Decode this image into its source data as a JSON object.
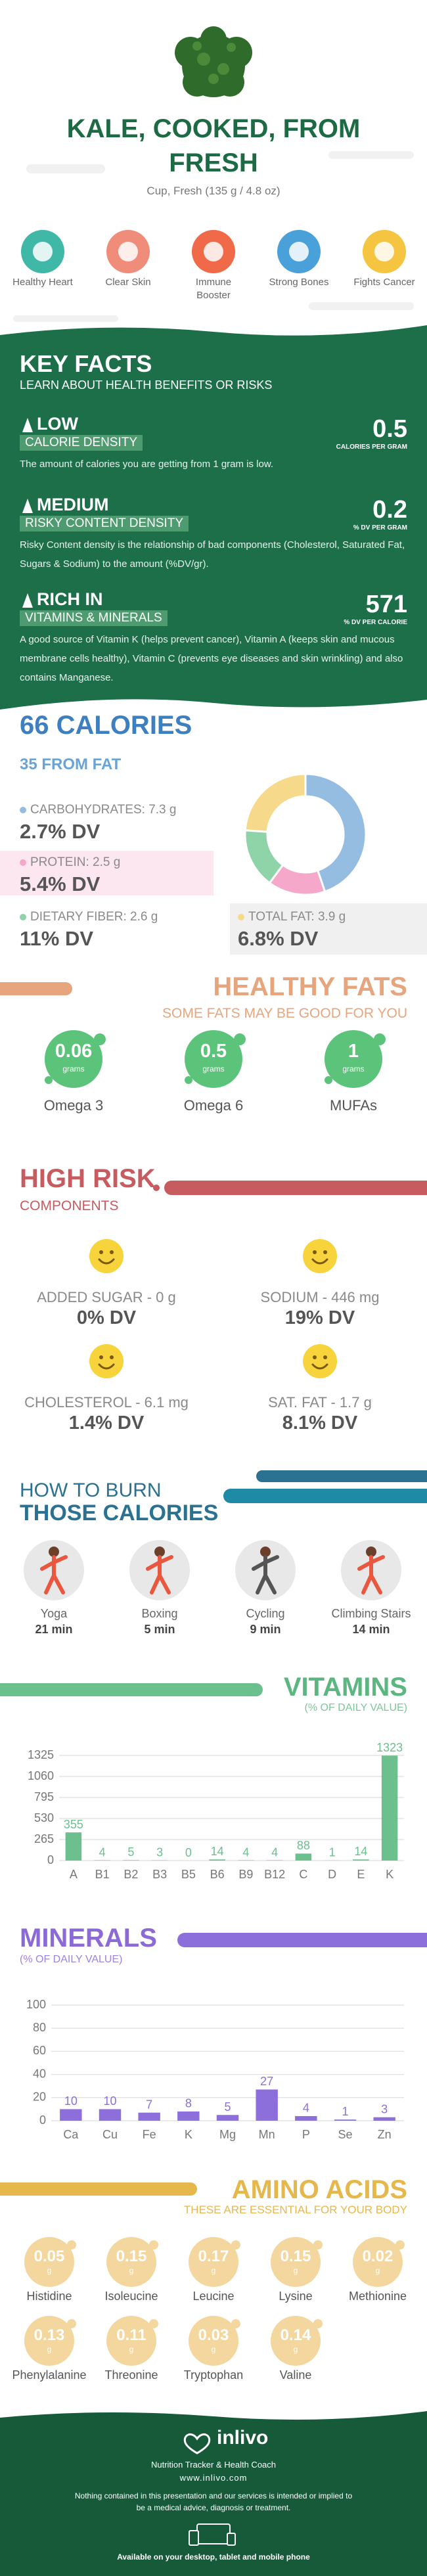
{
  "header": {
    "title": "KALE, COOKED, FROM FRESH",
    "serving": "Cup, Fresh (135 g / 4.8 oz)"
  },
  "benefits": [
    "Healthy Heart",
    "Clear Skin",
    "Immune Booster",
    "Strong Bones",
    "Fights Cancer"
  ],
  "key_facts": {
    "title": "KEY FACTS",
    "subtitle": "LEARN ABOUT HEALTH BENEFITS OR RISKS",
    "items": [
      {
        "level": "LOW",
        "label": "CALORIE DENSITY",
        "text": "The amount of calories you are getting from 1 gram is low.",
        "value": 0.5,
        "unit": "CALORIES PER GRAM"
      },
      {
        "level": "MEDIUM",
        "label": "RISKY CONTENT DENSITY",
        "text": "Risky Content density is the relationship of bad components (Cholesterol, Saturated Fat, Sugars & Sodium) to the amount (%DV/gr).",
        "value": 0.2,
        "unit": "% DV PER GRAM"
      },
      {
        "level": "RICH IN",
        "label": "VITAMINS & MINERALS",
        "text": "A good source of Vitamin K (helps prevent cancer), Vitamin A (keeps skin and mucous membrane cells healthy), Vitamin C (prevents eye diseases and skin wrinkling) and also contains Manganese.",
        "value": 571,
        "unit": "% DV PER CALORIE"
      }
    ]
  },
  "calories": {
    "title": "66 CALORIES",
    "subtitle": "35 FROM FAT",
    "nutrients": [
      {
        "name": "CARBOHYDRATES:",
        "amount": 7.3,
        "unit": "g",
        "dv": "2.7% DV",
        "color": "#95bde2"
      },
      {
        "name": "PROTEIN:",
        "amount": 2.5,
        "unit": "g",
        "dv": "5.4% DV",
        "color": "#f5a8c9"
      },
      {
        "name": "DIETARY FIBER:",
        "amount": 2.6,
        "unit": "g",
        "dv": "11% DV",
        "color": "#8fd3a8"
      },
      {
        "name": "TOTAL FAT:",
        "amount": 3.9,
        "unit": "g",
        "dv": "6.8% DV",
        "color": "#f6d98b"
      }
    ]
  },
  "healthy_fats": {
    "title": "HEALTHY FATS",
    "subtitle": "SOME FATS MAY BE GOOD FOR YOU",
    "items": [
      {
        "amount": 0.06,
        "unit": "grams",
        "name": "Omega 3"
      },
      {
        "amount": 0.5,
        "unit": "grams",
        "name": "Omega 6"
      },
      {
        "amount": 1,
        "unit": "grams",
        "name": "MUFAs"
      }
    ]
  },
  "high_risk": {
    "title": "HIGH RISK",
    "subtitle": "COMPONENTS",
    "items": [
      {
        "name": "ADDED SUGAR - 0 g",
        "dv": "0% DV"
      },
      {
        "name": "SODIUM - 446 mg",
        "dv": "19% DV"
      },
      {
        "name": "CHOLESTEROL - 6.1 mg",
        "dv": "1.4% DV"
      },
      {
        "name": "SAT. FAT - 1.7 g",
        "dv": "8.1% DV"
      }
    ]
  },
  "burn": {
    "title_1": "HOW TO BURN",
    "title_2": "THOSE CALORIES",
    "activities": [
      {
        "name": "Yoga",
        "time": "21 min"
      },
      {
        "name": "Boxing",
        "time": "5 min"
      },
      {
        "name": "Cycling",
        "time": "9 min"
      },
      {
        "name": "Climbing Stairs",
        "time": "14 min"
      }
    ]
  },
  "vitamins": {
    "title": "VITAMINS",
    "subtitle": "(% OF DAILY VALUE)",
    "chart_data": {
      "type": "bar",
      "categories": [
        "A",
        "B1",
        "B2",
        "B3",
        "B5",
        "B6",
        "B9",
        "B12",
        "C",
        "D",
        "E",
        "K"
      ],
      "values": [
        355,
        4,
        5,
        3,
        0,
        14,
        4,
        4,
        88,
        1,
        14,
        1323
      ],
      "color": "#6cc08e",
      "ylim": [
        0,
        1325
      ],
      "yticks": [
        0,
        265,
        530,
        795,
        1060,
        1325
      ],
      "grid": true
    }
  },
  "minerals": {
    "title": "MINERALS",
    "subtitle": "(% OF DAILY VALUE)",
    "chart_data": {
      "type": "bar",
      "categories": [
        "Ca",
        "Cu",
        "Fe",
        "K",
        "Mg",
        "Mn",
        "P",
        "Se",
        "Zn"
      ],
      "values": [
        10,
        10,
        7,
        8,
        5,
        27,
        4,
        1,
        3
      ],
      "color": "#8d6fdc",
      "ylim": [
        0,
        100
      ],
      "yticks": [
        0,
        20,
        40,
        60,
        80,
        100
      ],
      "grid": true
    }
  },
  "amino_acids": {
    "title": "AMINO ACIDS",
    "subtitle": "THESE ARE ESSENTIAL FOR YOUR BODY",
    "items": [
      {
        "amount": 0.05,
        "unit": "g",
        "name": "Histidine"
      },
      {
        "amount": 0.15,
        "unit": "g",
        "name": "Isoleucine"
      },
      {
        "amount": 0.17,
        "unit": "g",
        "name": "Leucine"
      },
      {
        "amount": 0.15,
        "unit": "g",
        "name": "Lysine"
      },
      {
        "amount": 0.02,
        "unit": "g",
        "name": "Methionine"
      },
      {
        "amount": 0.13,
        "unit": "g",
        "name": "Phenylalanine"
      },
      {
        "amount": 0.11,
        "unit": "g",
        "name": "Threonine"
      },
      {
        "amount": 0.03,
        "unit": "g",
        "name": "Tryptophan"
      },
      {
        "amount": 0.14,
        "unit": "g",
        "name": "Valine"
      }
    ]
  },
  "footer": {
    "brand": "inlivo",
    "tagline": "Nutrition Tracker & Health Coach",
    "url": "www.inlivo.com",
    "disclaimer": "Nothing contained in this presentation and our services is intended or implied to be a medical advice, diagnosis or treatment.",
    "availability": "Available on your desktop, tablet and mobile phone"
  }
}
